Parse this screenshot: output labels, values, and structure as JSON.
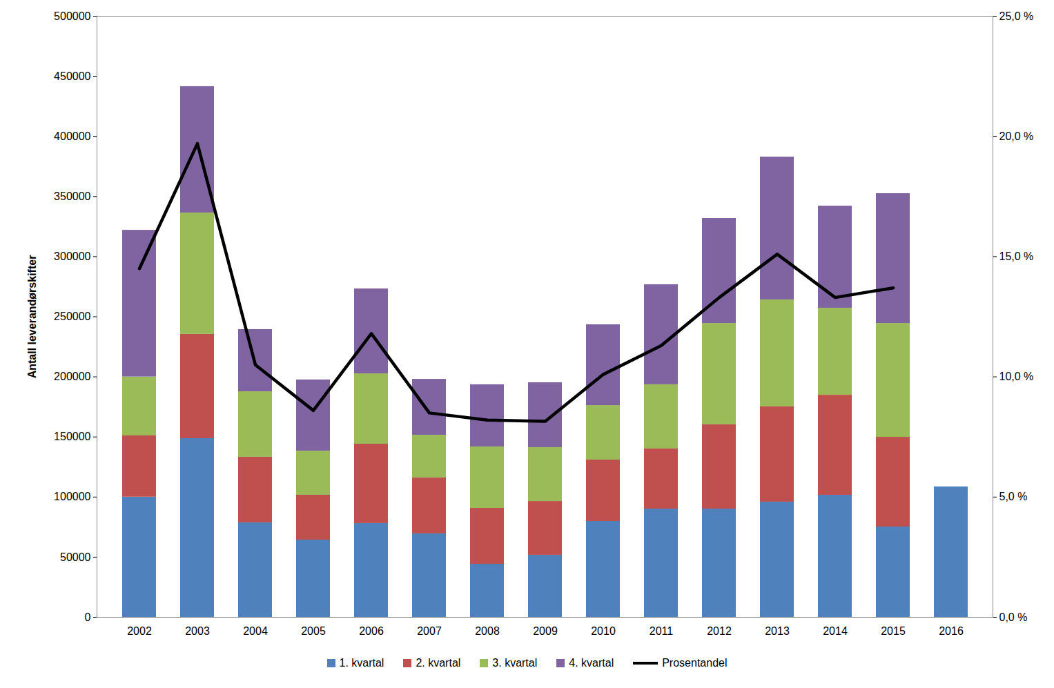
{
  "chart_data": {
    "type": "bar",
    "stacked": true,
    "grid": false,
    "legend": "bottom",
    "y_label": "Antall leverandørskifter",
    "categories": [
      "2002",
      "2003",
      "2004",
      "2005",
      "2006",
      "2007",
      "2008",
      "2009",
      "2010",
      "2011",
      "2012",
      "2013",
      "2014",
      "2015",
      "2016"
    ],
    "ylim": [
      0,
      500000
    ],
    "yticks": [
      0,
      50000,
      100000,
      150000,
      200000,
      250000,
      300000,
      350000,
      400000,
      450000,
      500000
    ],
    "y2lim": [
      0,
      25
    ],
    "y2ticks": [
      {
        "value": 0,
        "label": "0,0 %"
      },
      {
        "value": 5,
        "label": "5,0 %"
      },
      {
        "value": 10,
        "label": "10,0 %"
      },
      {
        "value": 15,
        "label": "15,0 %"
      },
      {
        "value": 20,
        "label": "20,0 %"
      },
      {
        "value": 25,
        "label": "25,0 %"
      }
    ],
    "series": [
      {
        "name": "1. kvartal",
        "color": "#4F81BD",
        "type": "bar",
        "values": [
          100000,
          148700,
          78600,
          64300,
          78100,
          69500,
          44200,
          51700,
          79800,
          90100,
          90100,
          95900,
          101600,
          75200,
          108500
        ]
      },
      {
        "name": "2. kvartal",
        "color": "#C0504D",
        "type": "bar",
        "values": [
          51000,
          86700,
          54600,
          37300,
          66000,
          46500,
          46500,
          44700,
          51100,
          50000,
          70100,
          79200,
          83200,
          74600,
          null
        ]
      },
      {
        "name": "3. kvartal",
        "color": "#9BBB59",
        "type": "bar",
        "values": [
          49000,
          101000,
          54500,
          36700,
          58500,
          35500,
          51100,
          44800,
          45300,
          53400,
          84300,
          89000,
          72400,
          94700,
          null
        ]
      },
      {
        "name": "4. kvartal",
        "color": "#8064A2",
        "type": "bar",
        "values": [
          122000,
          105100,
          51700,
          59200,
          70600,
          46500,
          51700,
          54000,
          67200,
          83200,
          87300,
          118800,
          84900,
          108000,
          null
        ]
      },
      {
        "name": "Prosentandel",
        "color": "#000000",
        "type": "line",
        "axis": "y2",
        "values": [
          14.5,
          19.7,
          10.5,
          8.6,
          11.8,
          8.5,
          8.2,
          8.15,
          10.1,
          11.3,
          13.3,
          15.1,
          13.3,
          13.7,
          null
        ]
      }
    ]
  }
}
